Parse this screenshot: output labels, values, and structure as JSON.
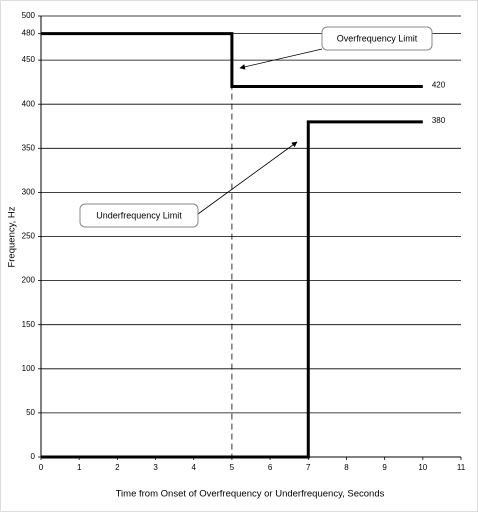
{
  "chart_data": {
    "type": "line",
    "xlabel": "Time from Onset of Overfrequency or Underfrequency, Seconds",
    "ylabel": "Frequency, Hz",
    "xlim": [
      0,
      11
    ],
    "xticks": [
      0,
      1,
      2,
      3,
      4,
      5,
      6,
      7,
      8,
      9,
      10,
      11
    ],
    "ylim": [
      0,
      500
    ],
    "yticks": [
      0,
      50,
      100,
      150,
      200,
      250,
      300,
      350,
      400,
      450,
      480,
      500
    ],
    "grid": true,
    "vline": 5,
    "series": [
      {
        "name": "Overfrequency Limit",
        "color": "#000000",
        "x": [
          0,
          5,
          5,
          10
        ],
        "values": [
          480,
          480,
          420,
          420
        ]
      },
      {
        "name": "Underfrequency Limit",
        "color": "#000000",
        "x": [
          0,
          7,
          7,
          10
        ],
        "values": [
          0,
          0,
          380,
          380
        ]
      }
    ]
  }
}
